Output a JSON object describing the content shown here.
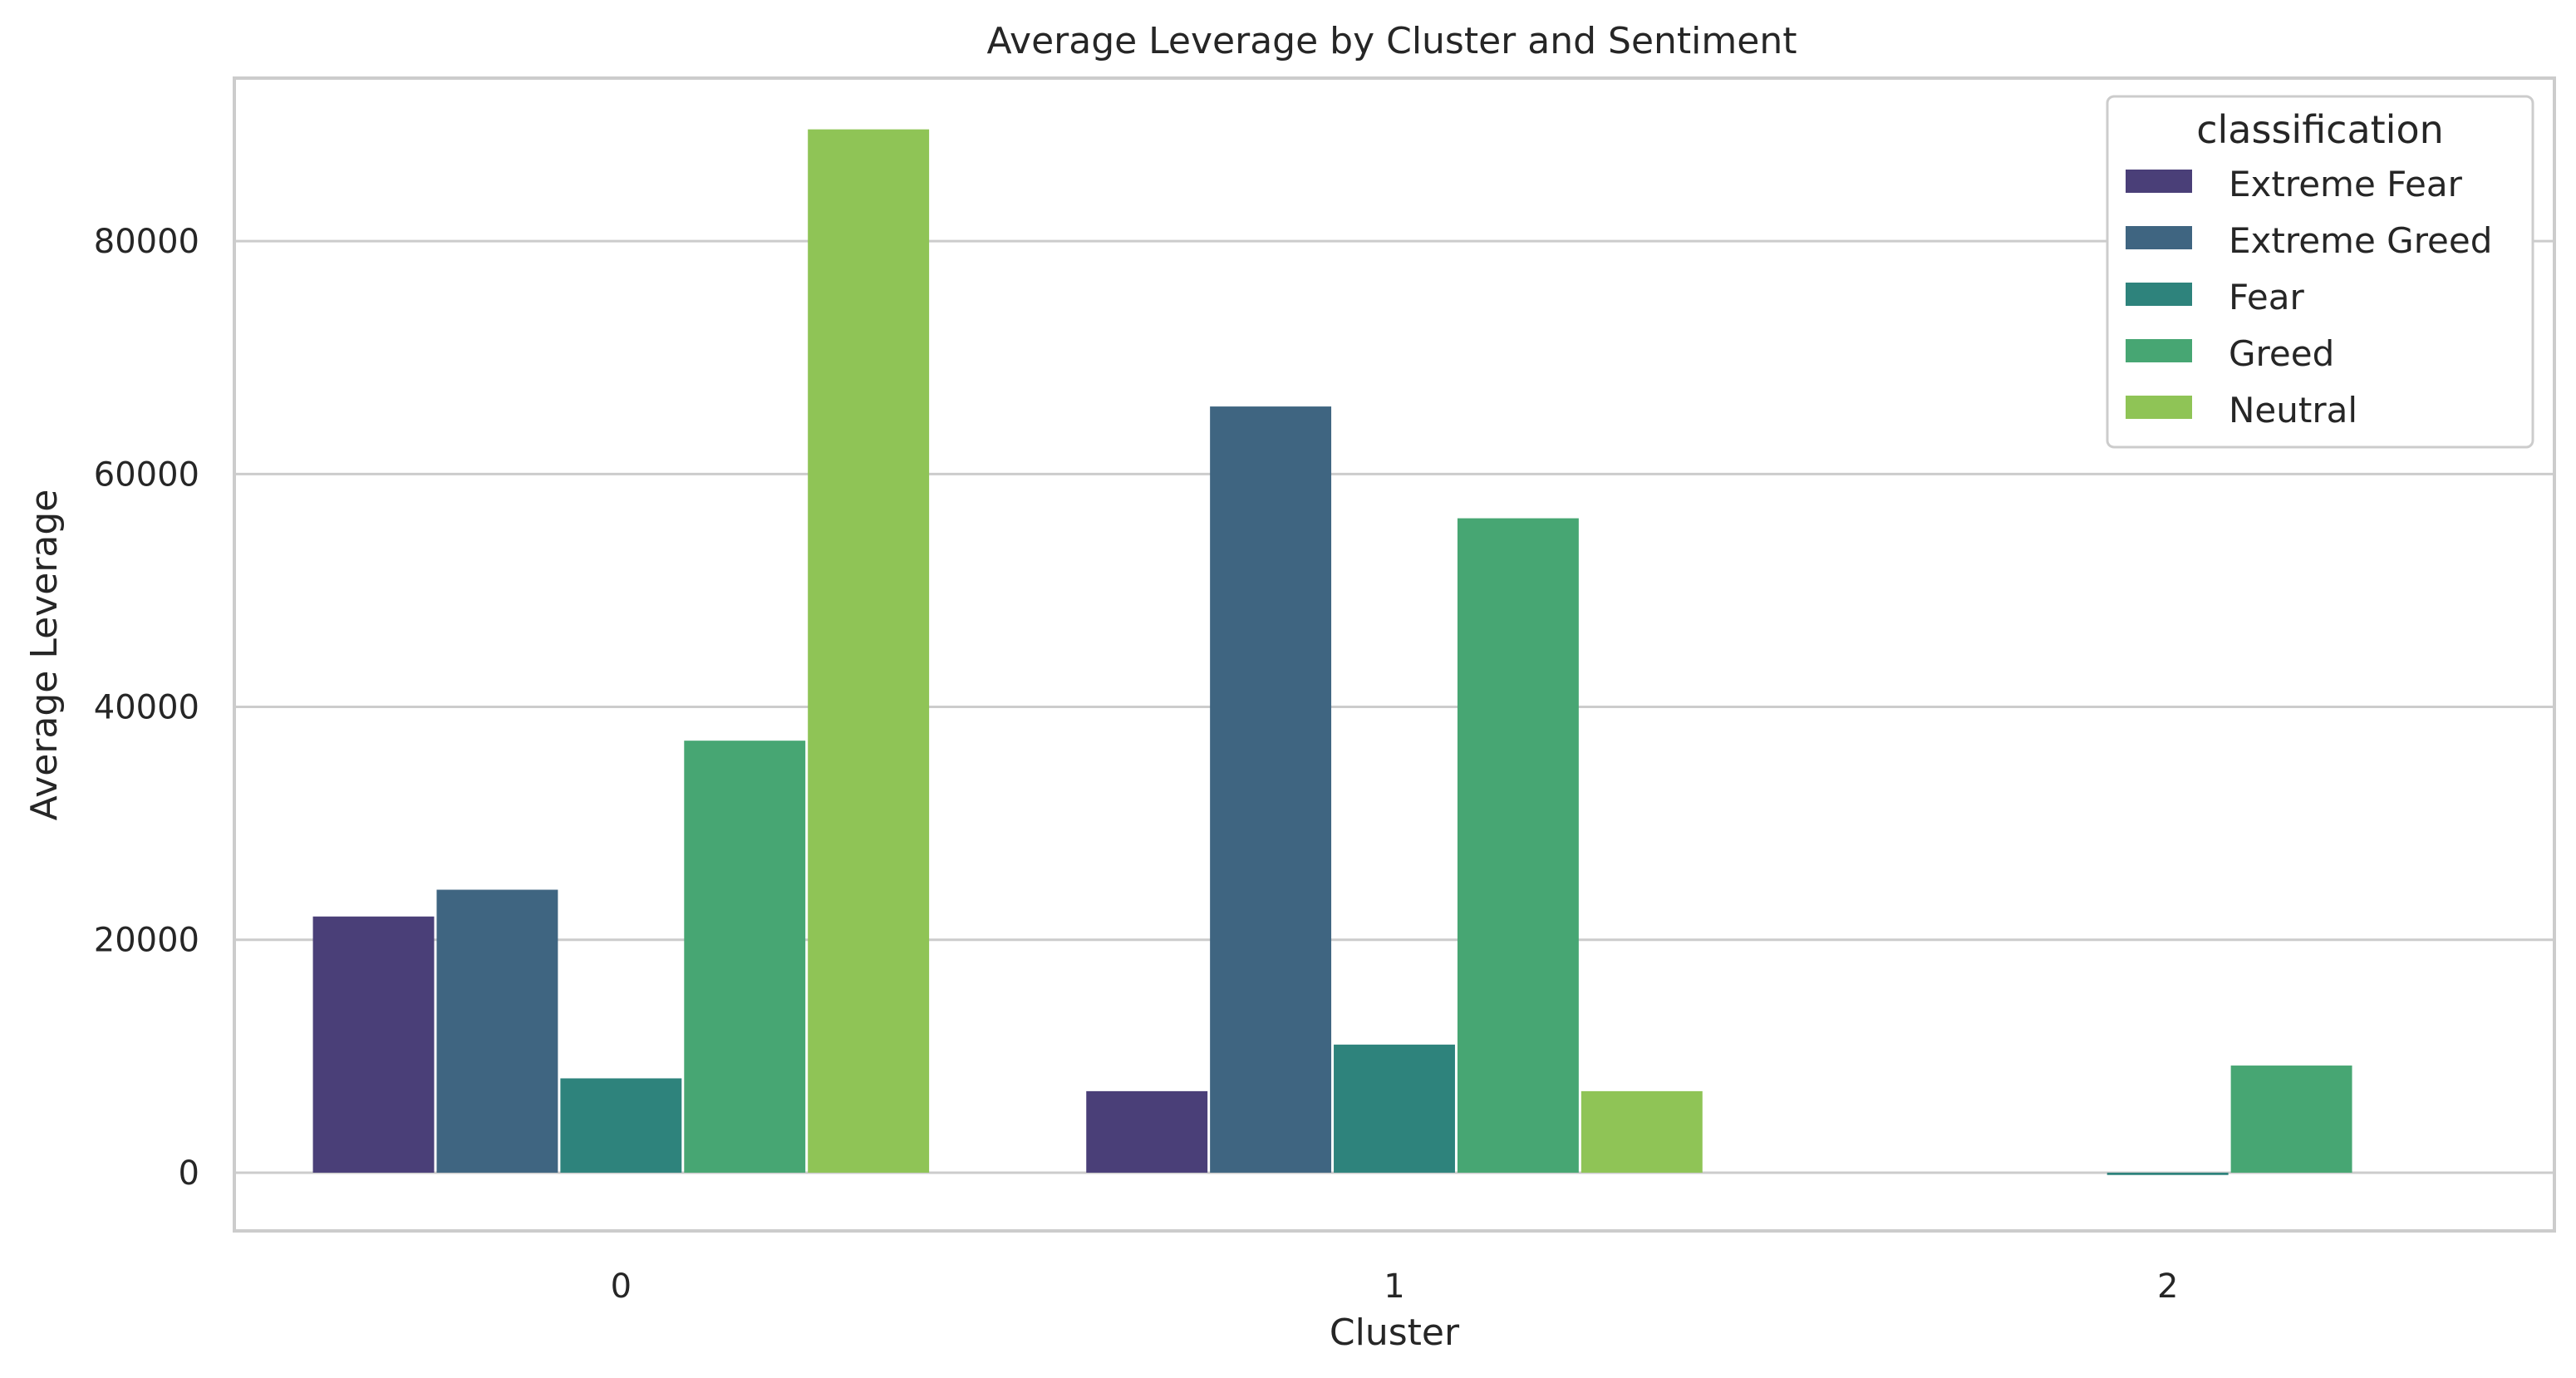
{
  "chart_data": {
    "type": "bar",
    "title": "Average Leverage by Cluster and Sentiment",
    "xlabel": "Cluster",
    "ylabel": "Average Leverage",
    "categories": [
      "0",
      "1",
      "2"
    ],
    "ylim": [
      -5000,
      94000
    ],
    "yticks": [
      0,
      20000,
      40000,
      60000,
      80000
    ],
    "grid": "horizontal",
    "legend": {
      "title": "classification",
      "placement": "top-right"
    },
    "series": [
      {
        "name": "Extreme Fear",
        "color": "#4a3f78",
        "values": [
          22000,
          7000,
          null
        ]
      },
      {
        "name": "Extreme Greed",
        "color": "#3f6581",
        "values": [
          24300,
          65800,
          null
        ]
      },
      {
        "name": "Fear",
        "color": "#2e837c",
        "values": [
          8100,
          11000,
          -200
        ]
      },
      {
        "name": "Greed",
        "color": "#47a673",
        "values": [
          37100,
          56200,
          9200
        ]
      },
      {
        "name": "Neutral",
        "color": "#8fc456",
        "values": [
          89600,
          7000,
          null
        ]
      }
    ]
  }
}
